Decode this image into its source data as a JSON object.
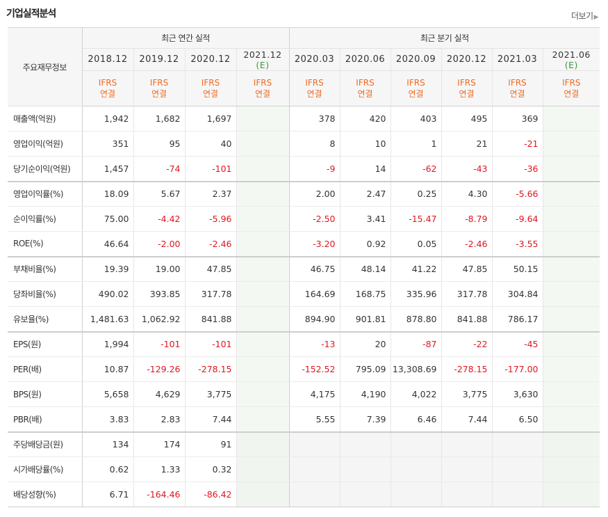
{
  "header": {
    "title": "기업실적분석",
    "more": "더보기"
  },
  "table": {
    "row_header": "주요재무정보",
    "groups": [
      "최근 연간 실적",
      "최근 분기 실적"
    ],
    "periods": [
      {
        "d": "2018.12",
        "e": ""
      },
      {
        "d": "2019.12",
        "e": ""
      },
      {
        "d": "2020.12",
        "e": ""
      },
      {
        "d": "2021.12",
        "e": "(E)"
      },
      {
        "d": "2020.03",
        "e": ""
      },
      {
        "d": "2020.06",
        "e": ""
      },
      {
        "d": "2020.09",
        "e": ""
      },
      {
        "d": "2020.12",
        "e": ""
      },
      {
        "d": "2021.03",
        "e": ""
      },
      {
        "d": "2021.06",
        "e": "(E)"
      }
    ],
    "type_line1": "IFRS",
    "type_line2": "연결",
    "rows": [
      {
        "label": "매출액(억원)",
        "v": [
          "1,942",
          "1,682",
          "1,697",
          "",
          "378",
          "420",
          "403",
          "495",
          "369",
          ""
        ]
      },
      {
        "label": "영업이익(억원)",
        "v": [
          "351",
          "95",
          "40",
          "",
          "8",
          "10",
          "1",
          "21",
          "-21",
          ""
        ]
      },
      {
        "label": "당기순이익(억원)",
        "v": [
          "1,457",
          "-74",
          "-101",
          "",
          "-9",
          "14",
          "-62",
          "-43",
          "-36",
          ""
        ]
      },
      {
        "label": "영업이익률(%)",
        "v": [
          "18.09",
          "5.67",
          "2.37",
          "",
          "2.00",
          "2.47",
          "0.25",
          "4.30",
          "-5.66",
          ""
        ]
      },
      {
        "label": "순이익률(%)",
        "v": [
          "75.00",
          "-4.42",
          "-5.96",
          "",
          "-2.50",
          "3.41",
          "-15.47",
          "-8.79",
          "-9.64",
          ""
        ]
      },
      {
        "label": "ROE(%)",
        "v": [
          "46.64",
          "-2.00",
          "-2.46",
          "",
          "-3.20",
          "0.92",
          "0.05",
          "-2.46",
          "-3.55",
          ""
        ]
      },
      {
        "label": "부채비율(%)",
        "v": [
          "19.39",
          "19.00",
          "47.85",
          "",
          "46.75",
          "48.14",
          "41.22",
          "47.85",
          "50.15",
          ""
        ]
      },
      {
        "label": "당좌비율(%)",
        "v": [
          "490.02",
          "393.85",
          "317.78",
          "",
          "164.69",
          "168.75",
          "335.96",
          "317.78",
          "304.84",
          ""
        ]
      },
      {
        "label": "유보율(%)",
        "v": [
          "1,481.63",
          "1,062.92",
          "841.88",
          "",
          "894.90",
          "901.81",
          "878.80",
          "841.88",
          "786.17",
          ""
        ]
      },
      {
        "label": "EPS(원)",
        "v": [
          "1,994",
          "-101",
          "-101",
          "",
          "-13",
          "20",
          "-87",
          "-22",
          "-45",
          ""
        ]
      },
      {
        "label": "PER(배)",
        "v": [
          "10.87",
          "-129.26",
          "-278.15",
          "",
          "-152.52",
          "795.09",
          "13,308.69",
          "-278.15",
          "-177.00",
          ""
        ]
      },
      {
        "label": "BPS(원)",
        "v": [
          "5,658",
          "4,629",
          "3,775",
          "",
          "4,175",
          "4,190",
          "4,022",
          "3,775",
          "3,630",
          ""
        ]
      },
      {
        "label": "PBR(배)",
        "v": [
          "3.83",
          "2.83",
          "7.44",
          "",
          "5.55",
          "7.39",
          "6.46",
          "7.44",
          "6.50",
          ""
        ]
      },
      {
        "label": "주당배당금(원)",
        "v": [
          "134",
          "174",
          "91",
          "",
          "",
          "",
          "",
          "",
          "",
          ""
        ]
      },
      {
        "label": "시가배당률(%)",
        "v": [
          "0.62",
          "1.33",
          "0.32",
          "",
          "",
          "",
          "",
          "",
          "",
          ""
        ]
      },
      {
        "label": "배당성향(%)",
        "v": [
          "6.71",
          "-164.46",
          "-86.42",
          "",
          "",
          "",
          "",
          "",
          "",
          ""
        ]
      }
    ]
  }
}
